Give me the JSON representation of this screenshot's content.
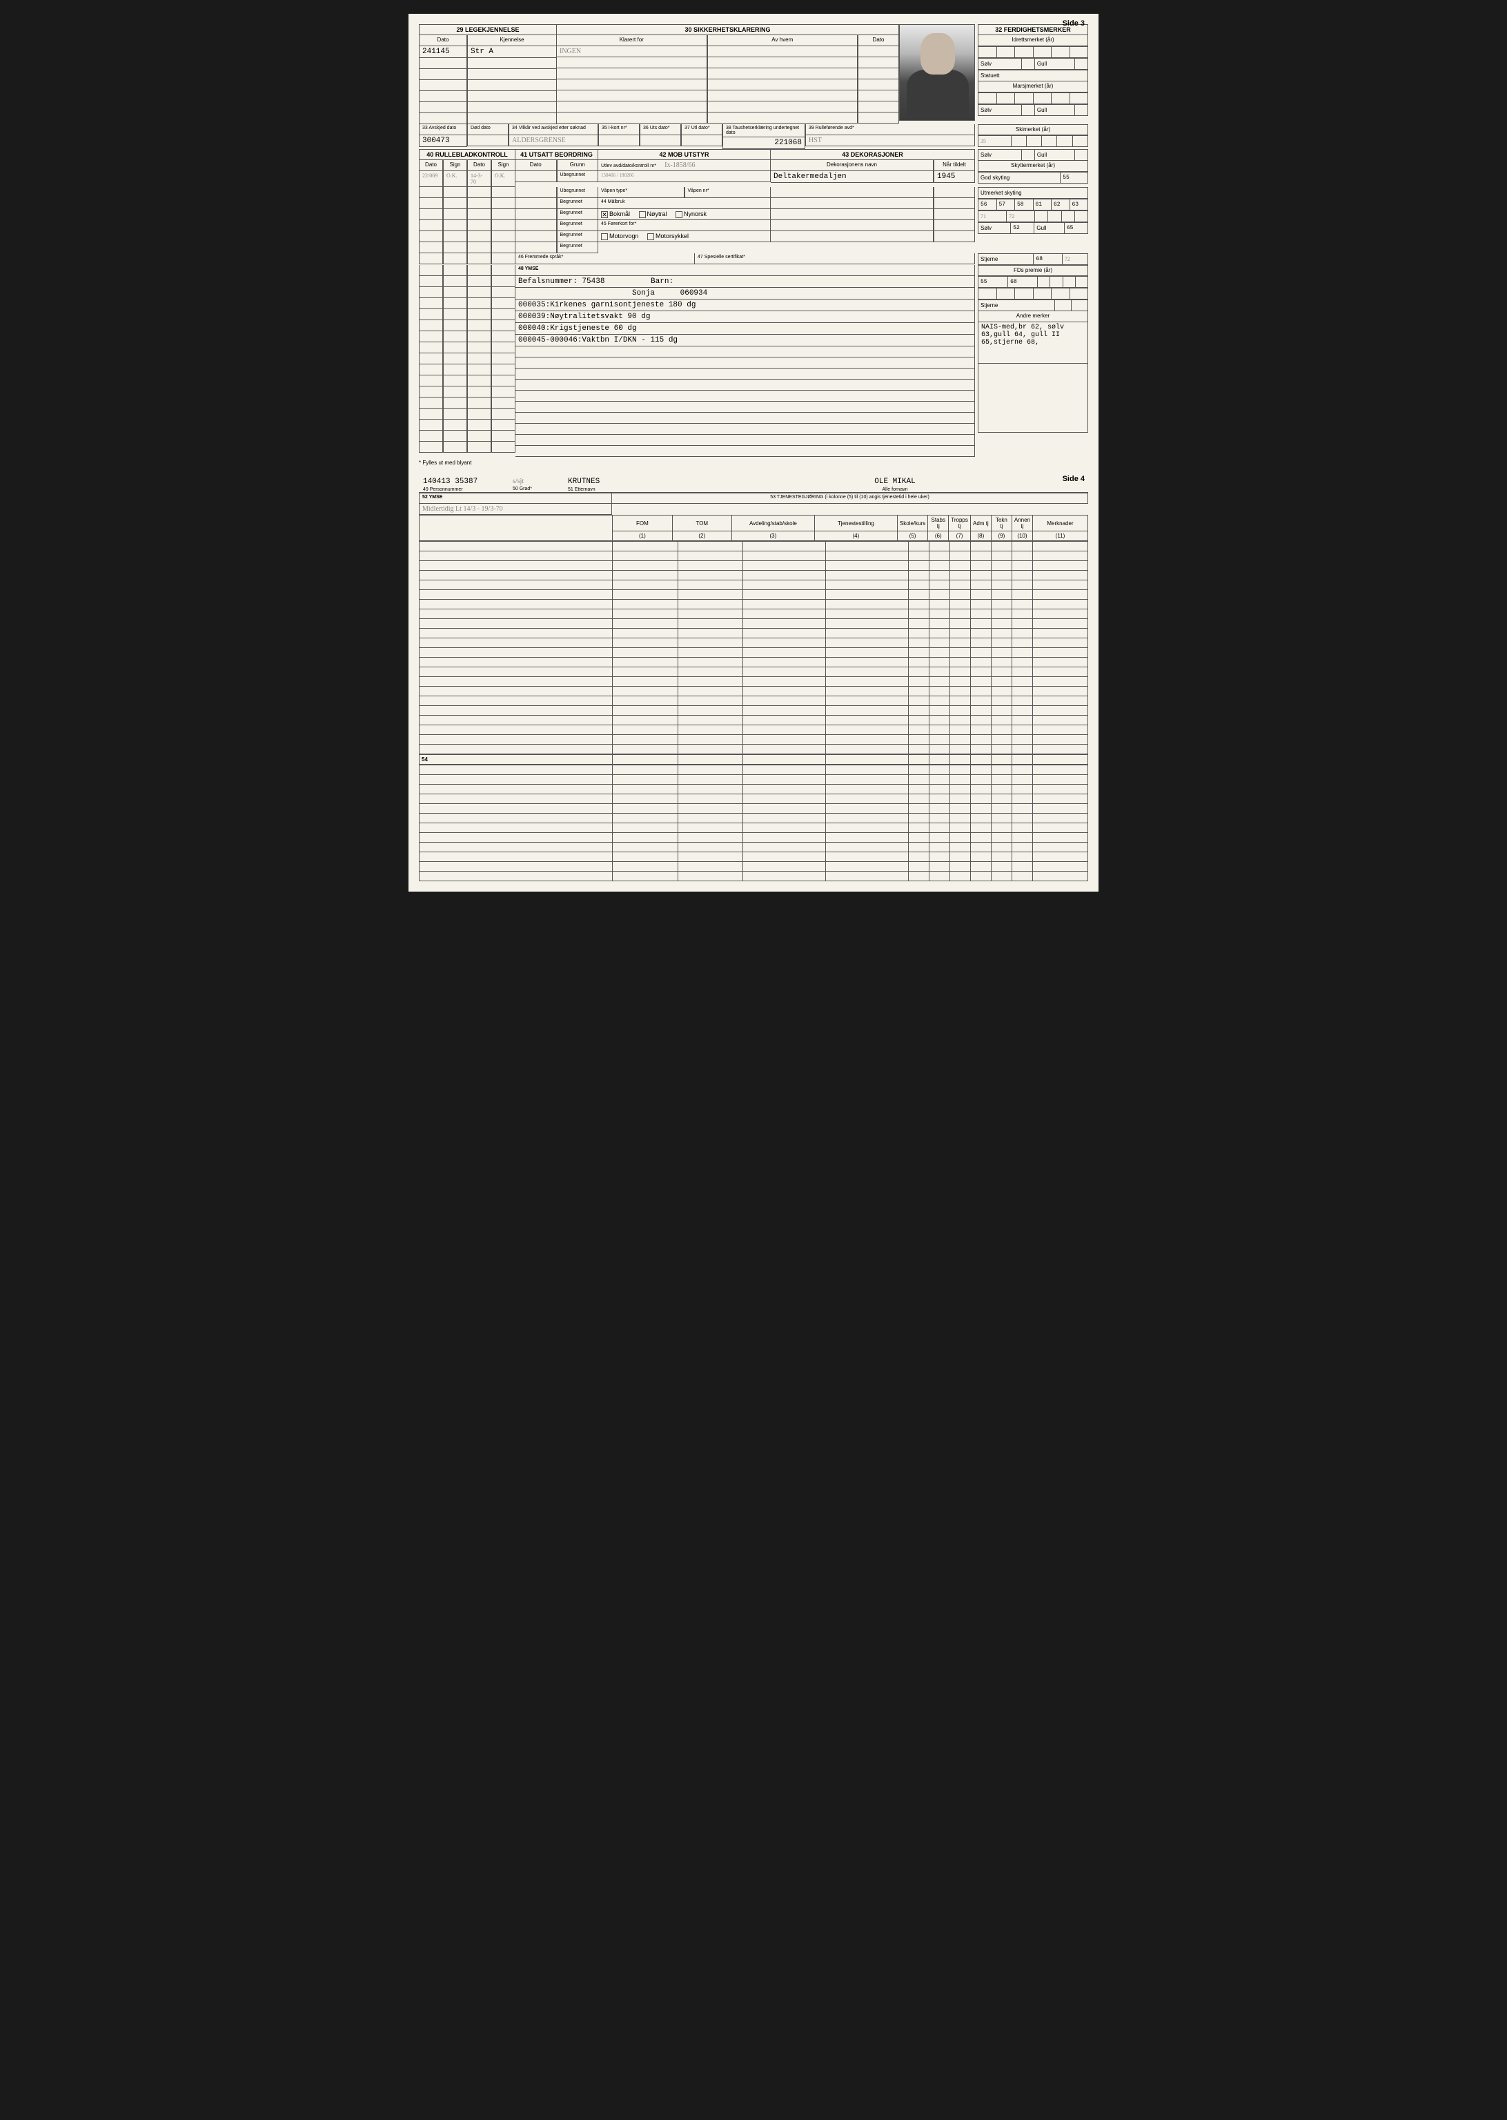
{
  "side3_label": "Side 3",
  "side4_label": "Side 4",
  "s29": {
    "title": "29 LEGEKJENNELSE",
    "col_dato": "Dato",
    "col_kjennelse": "Kjennelse",
    "dato_val": "241145",
    "kjennelse_val": "Str A"
  },
  "s30": {
    "title": "30 SIKKERHETSKLARERING",
    "col_klarert": "Klarert for",
    "col_avhvem": "Av hvem",
    "col_dato": "Dato",
    "klarert_val": "INGEN"
  },
  "s32": {
    "title": "32 FERDIGHETSMERKER",
    "idrett_label": "Idrettsmerket (år)",
    "solv": "Sølv",
    "gull": "Gull",
    "statuett": "Statuett",
    "marsj_label": "Marsjmerket (år)",
    "ski_label": "Skimerket (år)",
    "ski_val": "35",
    "skytter_label": "Skyttermerket (år)",
    "god_skyting": "God skyting",
    "god_skyting_val": "55",
    "utmerket": "Utmerket skyting",
    "utmerket_vals": [
      "56",
      "57",
      "58",
      "61",
      "62",
      "63"
    ],
    "utmerket_vals2": [
      "71",
      "72",
      "",
      "",
      "",
      ""
    ],
    "solv_val": "52",
    "gull_val": "65",
    "stjerne": "Stjerne",
    "stjerne_val1": "68",
    "stjerne_val2": "72",
    "fd_premie": "FDs premie (år)",
    "fd_vals": [
      "55",
      "68"
    ],
    "andre_merker": "Andre merker",
    "andre_text": "NAIS-med,br 62, sølv 63,gull 64, gull II 65,stjerne 68,"
  },
  "s33": {
    "label": "33 Avskjed dato",
    "val": "300473"
  },
  "s33b": {
    "label": "Død dato"
  },
  "s34": {
    "label": "34 Vilkår ved avskjed etter søknad",
    "val": "ALDERSGRENSE"
  },
  "s35": {
    "label": "35 I-kort nr*"
  },
  "s36": {
    "label": "36 Uts dato*"
  },
  "s37": {
    "label": "37 Utl dato*"
  },
  "s38": {
    "label": "38 Taushetserklæring undertegnet dato",
    "val": "221068"
  },
  "s39": {
    "label": "39 Rulleførende avd*",
    "val": "HST"
  },
  "s40": {
    "title": "40 RULLEBLADKONTROLL",
    "col_dato": "Dato",
    "col_sign": "Sign",
    "r1_d1": "22/069",
    "r1_s1": "O.K.",
    "r1_d2": "14-3-70",
    "r1_s2": "O.K."
  },
  "s41": {
    "title": "41 UTSATT BEORDRING",
    "col_dato": "Dato",
    "col_grunn": "Grunn",
    "ubegrunnet": "Ubegrunnet",
    "begrunnet": "Begrunnet"
  },
  "s42": {
    "title": "42 MOB UTSTYR",
    "utlev": "Utlev avd/dato/kontroll nr*",
    "utlev_val": "Ix-1858/66",
    "utlev_val2": "150466 / 180266",
    "vapen_type": "Våpen type*",
    "vapen_nr": "Våpen nr*",
    "malbruk": "44 Målbruk",
    "bokmal": "Bokmål",
    "noytral": "Nøytral",
    "nynorsk": "Nynorsk",
    "forerkort": "45 Førerkort for*",
    "motorvogn": "Motorvogn",
    "motorsykkel": "Motorsykkel"
  },
  "s43": {
    "title": "43 DEKORASJONER",
    "col_navn": "Dekorasjonens navn",
    "col_tildelt": "Når tildelt",
    "navn_val": "Deltakermedaljen",
    "tildelt_val": "1945"
  },
  "s46": {
    "label": "46 Fremmede språk*"
  },
  "s47": {
    "label": "47 Spesielle sertifikat*"
  },
  "s48": {
    "title": "48 YMSE",
    "line1": "Befalsnummer: 75438",
    "barn": "Barn:",
    "barn_navn": "Sonja",
    "barn_dato": "060934",
    "line2": "000035:Kirkenes garnisontjeneste 180 dg",
    "line3": "000039:Nøytralitetsvakt 90 dg",
    "line4": "000040:Krigstjeneste 60 dg",
    "line5": "000045-000046:Vaktbn I/DKN - 115 dg"
  },
  "footnote3": "* Fylles ut med blyant",
  "s49": {
    "label": "49 Personnummer",
    "val": "140413 35387"
  },
  "s50": {
    "label": "50 Grad*",
    "val": "s/sjt"
  },
  "s51": {
    "label": "51 Etternavn",
    "val": "KRUTNES"
  },
  "s51b": {
    "label": "Alle fornavn",
    "val": "OLE MIKAL"
  },
  "s52": {
    "label": "52 YMSE",
    "val": "Midlertidig Lt 14/3 - 19/3-70"
  },
  "s53": {
    "title": "53 TJENESTEGJØRING (i kolonne (5) til (10) angis tjenestetid i hele uker)",
    "cols": [
      "FOM",
      "TOM",
      "Avdeling/stab/skole",
      "Tjenestestilling",
      "Skole/kurs",
      "Stabs tj",
      "Tropps tj",
      "Adm tj",
      "Tekn tj",
      "Annen tj",
      "Merknader"
    ],
    "nums": [
      "(1)",
      "(2)",
      "(3)",
      "(4)",
      "(5)",
      "(6)",
      "(7)",
      "(8)",
      "(9)",
      "(10)",
      "(11)"
    ]
  },
  "s54": "54"
}
